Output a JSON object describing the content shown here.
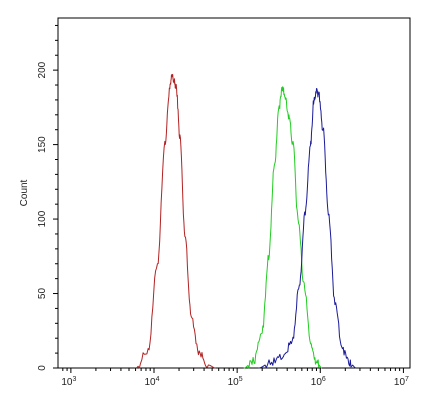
{
  "chart_data": {
    "type": "line",
    "title": "",
    "xlabel": "",
    "ylabel": "Count",
    "x_scale": "log",
    "xlim": [
      700,
      12000000
    ],
    "ylim": [
      0,
      235
    ],
    "grid": false,
    "legend": "none",
    "x_ticks": [
      {
        "value": 1000,
        "base": "10",
        "exp": "3"
      },
      {
        "value": 10000,
        "base": "10",
        "exp": "4"
      },
      {
        "value": 100000,
        "base": "10",
        "exp": "5"
      },
      {
        "value": 1000000,
        "base": "10",
        "exp": "6"
      },
      {
        "value": 10000000,
        "base": "10",
        "exp": "7"
      }
    ],
    "y_ticks": [
      0,
      50,
      100,
      150,
      200
    ],
    "series": [
      {
        "color": "#b22222",
        "x": [
          6000,
          8500,
          11000,
          13500,
          15500,
          16500,
          17500,
          18500,
          20500,
          23500,
          28000,
          35000,
          45000,
          55000
        ],
        "y": [
          0,
          12,
          70,
          150,
          188,
          196,
          192,
          188,
          155,
          90,
          35,
          10,
          2,
          0
        ]
      },
      {
        "color": "#22cc22",
        "x": [
          120000,
          160000,
          200000,
          240000,
          280000,
          320000,
          350000,
          380000,
          420000,
          470000,
          540000,
          640000,
          780000,
          900000,
          1050000
        ],
        "y": [
          0,
          5,
          25,
          75,
          135,
          175,
          188,
          182,
          168,
          150,
          100,
          55,
          15,
          4,
          0
        ]
      },
      {
        "color": "#1a1a99",
        "x": [
          180000,
          260000,
          360000,
          460000,
          560000,
          660000,
          760000,
          840000,
          900000,
          960000,
          1080000,
          1250000,
          1500000,
          1850000,
          2300000,
          2700000
        ],
        "y": [
          0,
          4,
          8,
          18,
          55,
          105,
          150,
          180,
          186,
          183,
          160,
          105,
          45,
          12,
          3,
          0
        ]
      }
    ]
  }
}
